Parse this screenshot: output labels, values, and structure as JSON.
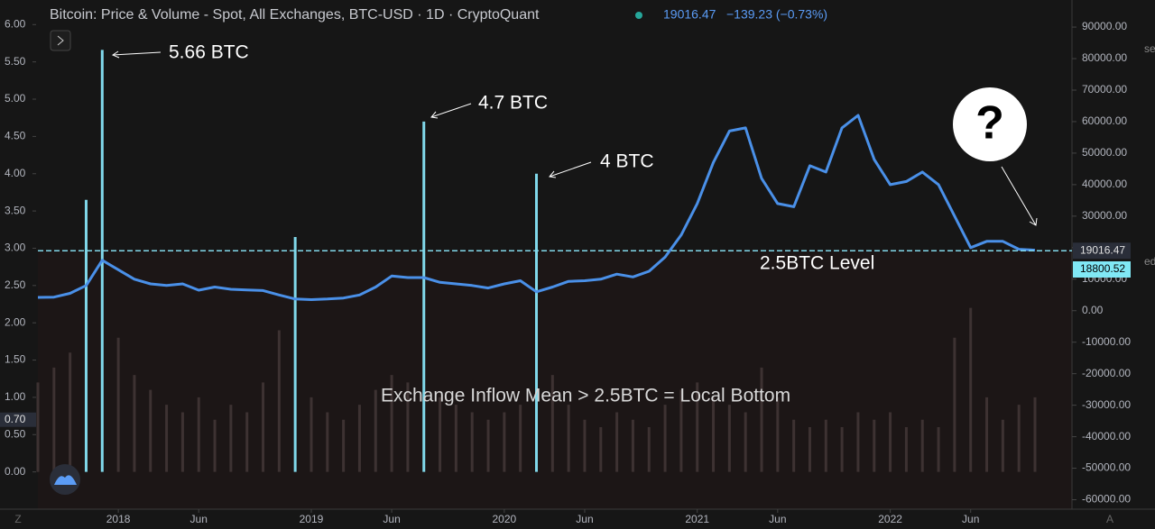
{
  "header": {
    "title": "Bitcoin: Price & Volume - Spot, All Exchanges, BTC-USD · 1D · CryptoQuant",
    "last": "19016.47",
    "change": "−139.23 (−0.73%)"
  },
  "ui": {
    "left_button": "Z",
    "right_button": "A",
    "edge_top": "se",
    "edge_mid": "ed",
    "bubble": "?"
  },
  "chart_data": {
    "type": "line",
    "x": [
      "2017-08",
      "2017-09",
      "2017-10",
      "2017-11",
      "2017-12",
      "2018-01",
      "2018-02",
      "2018-03",
      "2018-04",
      "2018-05",
      "2018-06",
      "2018-07",
      "2018-08",
      "2018-09",
      "2018-10",
      "2018-11",
      "2018-12",
      "2019-01",
      "2019-02",
      "2019-03",
      "2019-04",
      "2019-05",
      "2019-06",
      "2019-07",
      "2019-08",
      "2019-09",
      "2019-10",
      "2019-11",
      "2019-12",
      "2020-01",
      "2020-02",
      "2020-03",
      "2020-04",
      "2020-05",
      "2020-06",
      "2020-07",
      "2020-08",
      "2020-09",
      "2020-10",
      "2020-11",
      "2020-12",
      "2021-01",
      "2021-02",
      "2021-03",
      "2021-04",
      "2021-05",
      "2021-06",
      "2021-07",
      "2021-08",
      "2021-09",
      "2021-10",
      "2021-11",
      "2021-12",
      "2022-01",
      "2022-02",
      "2022-03",
      "2022-04",
      "2022-05",
      "2022-06",
      "2022-07",
      "2022-08",
      "2022-09",
      "2022-10"
    ],
    "xlim": [
      "2017-08",
      "2022-10"
    ],
    "xticks": [
      {
        "value": "2018-01",
        "label": "2018"
      },
      {
        "value": "2018-06",
        "label": "Jun"
      },
      {
        "value": "2019-01",
        "label": "2019"
      },
      {
        "value": "2019-06",
        "label": "Jun"
      },
      {
        "value": "2020-01",
        "label": "2020"
      },
      {
        "value": "2020-06",
        "label": "Jun"
      },
      {
        "value": "2021-01",
        "label": "2021"
      },
      {
        "value": "2021-06",
        "label": "Jun"
      },
      {
        "value": "2022-01",
        "label": "2022"
      },
      {
        "value": "2022-06",
        "label": "Jun"
      }
    ],
    "ylim": [
      -0.5,
      6.33
    ],
    "yticks": [
      {
        "value": 0,
        "label": "0.00"
      },
      {
        "value": 0.5,
        "label": "0.50"
      },
      {
        "value": 1,
        "label": "1.00"
      },
      {
        "value": 1.5,
        "label": "1.50"
      },
      {
        "value": 2,
        "label": "2.00"
      },
      {
        "value": 2.5,
        "label": "2.50"
      },
      {
        "value": 3,
        "label": "3.00"
      },
      {
        "value": 3.5,
        "label": "3.50"
      },
      {
        "value": 4,
        "label": "4.00"
      },
      {
        "value": 4.5,
        "label": "4.50"
      },
      {
        "value": 5,
        "label": "5.00"
      },
      {
        "value": 5.5,
        "label": "5.50"
      },
      {
        "value": 6,
        "label": "6.00"
      }
    ],
    "y_marker": {
      "value": 0.7,
      "label": "0.70"
    },
    "y2lim": [
      -63000,
      98600
    ],
    "y2ticks": [
      {
        "value": -60000,
        "label": "-60000.00"
      },
      {
        "value": -50000,
        "label": "-50000.00"
      },
      {
        "value": -40000,
        "label": "-40000.00"
      },
      {
        "value": -30000,
        "label": "-30000.00"
      },
      {
        "value": -20000,
        "label": "-20000.00"
      },
      {
        "value": -10000,
        "label": "-10000.00"
      },
      {
        "value": 0,
        "label": "0.00"
      },
      {
        "value": 10000,
        "label": "10000.00"
      },
      {
        "value": 20000,
        "label": "20000.00"
      },
      {
        "value": 30000,
        "label": "30000.00"
      },
      {
        "value": 40000,
        "label": "40000.00"
      },
      {
        "value": 50000,
        "label": "50000.00"
      },
      {
        "value": 60000,
        "label": "60000.00"
      },
      {
        "value": 70000,
        "label": "70000.00"
      },
      {
        "value": 80000,
        "label": "80000.00"
      },
      {
        "value": 90000,
        "label": "90000.00"
      }
    ],
    "y2_markers": [
      19016.47,
      18800.52
    ],
    "series": [
      {
        "color": "#80d8ea",
        "axis": "y",
        "values": [
          1.2,
          1.4,
          1.6,
          3.65,
          5.66,
          1.8,
          1.3,
          1.1,
          0.9,
          0.8,
          1.0,
          0.7,
          0.9,
          0.8,
          1.2,
          1.9,
          3.15,
          1.0,
          0.8,
          0.7,
          0.9,
          1.1,
          1.3,
          1.2,
          4.7,
          1.0,
          0.9,
          0.8,
          0.7,
          0.8,
          0.9,
          4.0,
          1.3,
          0.9,
          0.7,
          0.6,
          0.8,
          0.7,
          0.6,
          0.9,
          1.1,
          1.2,
          1.0,
          0.9,
          0.8,
          1.4,
          1.0,
          0.7,
          0.6,
          0.7,
          0.6,
          0.8,
          0.7,
          0.8,
          0.6,
          0.7,
          0.6,
          1.8,
          2.2,
          1.0,
          0.7,
          0.9,
          1.0
        ]
      },
      {
        "color": "#4a90e8",
        "axis": "y2",
        "values": [
          4200,
          4300,
          5500,
          8000,
          16000,
          13000,
          10000,
          8500,
          8000,
          8500,
          6500,
          7500,
          6800,
          6600,
          6400,
          5000,
          3700,
          3500,
          3700,
          4000,
          5000,
          7500,
          11000,
          10500,
          10500,
          9000,
          8500,
          8000,
          7200,
          8500,
          9500,
          6000,
          7500,
          9300,
          9500,
          10000,
          11600,
          10700,
          12500,
          17000,
          24000,
          34000,
          47000,
          57000,
          58000,
          42000,
          34000,
          33000,
          46000,
          44000,
          58000,
          62000,
          48000,
          40000,
          41000,
          44000,
          40000,
          30000,
          20000,
          22000,
          22000,
          19500,
          19200
        ]
      }
    ],
    "annotations": [
      "5.66 BTC",
      "4.7 BTC",
      "4 BTC",
      "2.5BTC Level",
      "Exchange Inflow Mean > 2.5BTC = Local Bottom"
    ]
  }
}
